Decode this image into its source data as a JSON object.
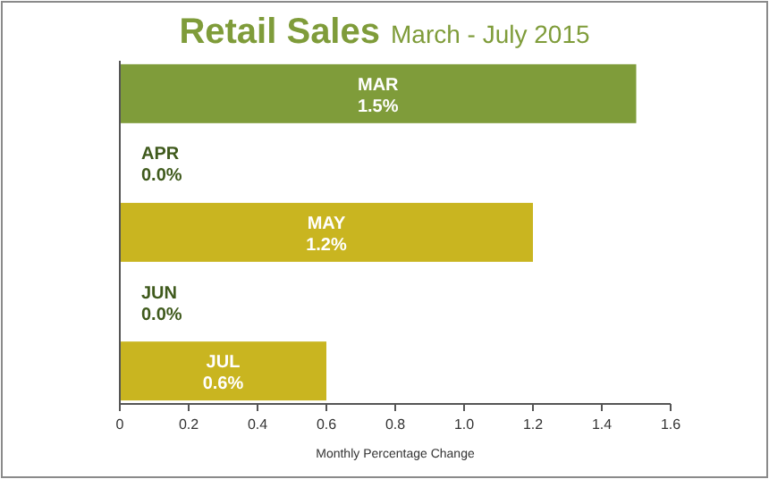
{
  "chart_data": {
    "type": "bar",
    "orientation": "horizontal",
    "title": "Retail Sales",
    "subtitle": "March - July 2015",
    "xlabel": "Monthly Percentage Change",
    "categories": [
      "MAR",
      "APR",
      "MAY",
      "JUN",
      "JUL"
    ],
    "values": [
      1.5,
      0.0,
      1.2,
      0.0,
      0.6
    ],
    "colors": [
      "#7f9c3a",
      "#4d6b22",
      "#c9b520",
      "#86a63c",
      "#c9b520"
    ],
    "value_labels": [
      "1.5%",
      "0.0%",
      "1.2%",
      "0.0%",
      "0.6%"
    ],
    "xlim": [
      0,
      1.6
    ],
    "xticks": [
      0,
      0.2,
      0.4,
      0.6,
      0.8,
      {
        "value": 1,
        "label": "1.0"
      },
      1.2,
      1.4,
      1.6
    ],
    "tick_labels": "x"
  }
}
